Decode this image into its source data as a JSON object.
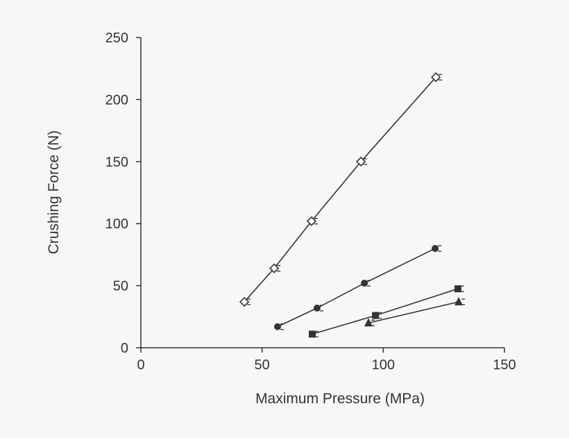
{
  "chart_data": {
    "type": "line",
    "title": "",
    "xlabel": "Maximum Pressure (MPa)",
    "ylabel": "Crushing Force (N)",
    "xlim": [
      0,
      150
    ],
    "ylim": [
      0,
      250
    ],
    "xticks": [
      0,
      50,
      100,
      150
    ],
    "yticks": [
      0,
      50,
      100,
      150,
      200,
      250
    ],
    "grid": false,
    "legend": "none",
    "series": [
      {
        "marker": "open-diamond",
        "x": [
          42.7,
          55.0,
          70.4,
          90.8,
          121.7
        ],
        "y": [
          37,
          64,
          102,
          150,
          218
        ]
      },
      {
        "marker": "filled-circle",
        "x": [
          56.4,
          72.7,
          92.2,
          121.4
        ],
        "y": [
          17,
          32,
          52,
          80
        ]
      },
      {
        "marker": "filled-square",
        "x": [
          70.7,
          96.8,
          130.8
        ],
        "y": [
          11,
          26,
          47.5
        ]
      },
      {
        "marker": "filled-triangle",
        "x": [
          93.9,
          131.1
        ],
        "y": [
          20,
          37
        ]
      }
    ],
    "colors": {
      "ink": "#333333",
      "background": "#f7f7f7"
    }
  }
}
